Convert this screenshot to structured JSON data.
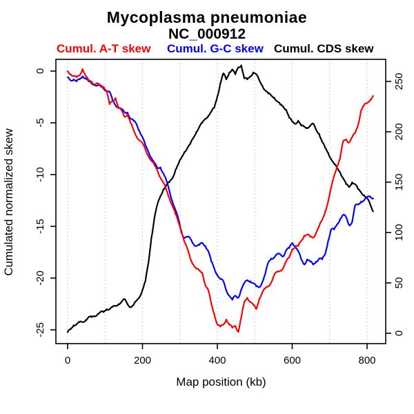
{
  "title": "Mycoplasma pneumoniae",
  "subtitle": "NC_000912",
  "legend": {
    "at": "Cumul. A-T skew",
    "gc": "Cumul. G-C skew",
    "cds": "Cumul. CDS skew"
  },
  "axes": {
    "xlabel": "Map position (kb)",
    "ylabel_left": "Cumulated normalized skew"
  },
  "colors": {
    "at_skew": "#ff0000",
    "gc_skew": "#0000ff",
    "cds_skew": "#000000",
    "grid": "#c8c8c8",
    "background": "#ffffff"
  },
  "chart_data": {
    "type": "line",
    "title": "Mycoplasma pneumoniae",
    "subtitle": "NC_000912",
    "xlabel": "Map position (kb)",
    "ylabel_left": "Cumulated normalized skew",
    "legend_position": "top",
    "grid": "vertical dotted gridlines every 100 kb",
    "x_ticks": [
      0,
      200,
      400,
      600,
      800
    ],
    "y_left_ticks": [
      0,
      -5,
      -10,
      -15,
      -20,
      -25
    ],
    "y_right_ticks": [
      0,
      50,
      100,
      150,
      200,
      250
    ],
    "xlim": [
      -33,
      850
    ],
    "ylim_left": [
      -26.3,
      1.1
    ],
    "ylim_right": [
      -10,
      272
    ],
    "x": [
      0,
      8,
      16,
      24,
      32,
      40,
      48,
      56,
      64,
      72,
      80,
      88,
      96,
      104,
      112,
      120,
      128,
      136,
      144,
      152,
      160,
      168,
      176,
      184,
      192,
      200,
      208,
      216,
      224,
      232,
      240,
      248,
      256,
      264,
      272,
      280,
      288,
      296,
      304,
      312,
      320,
      328,
      336,
      344,
      352,
      360,
      368,
      376,
      384,
      392,
      400,
      408,
      416,
      424,
      432,
      440,
      448,
      456,
      464,
      472,
      480,
      488,
      496,
      504,
      512,
      520,
      528,
      536,
      544,
      552,
      560,
      568,
      576,
      584,
      592,
      600,
      608,
      616,
      624,
      632,
      640,
      648,
      656,
      664,
      672,
      680,
      688,
      696,
      704,
      712,
      720,
      728,
      736,
      744,
      752,
      760,
      768,
      776,
      784,
      792,
      800,
      808,
      816
    ],
    "series": [
      {
        "name": "Cumul. A-T skew",
        "color": "#ff0000",
        "axis": "left",
        "values": [
          0,
          -0.3,
          -0.5,
          -0.6,
          -0.4,
          0.2,
          -0.5,
          -0.9,
          -1,
          -1.3,
          -1.2,
          -1.5,
          -1.5,
          -1.9,
          -3.2,
          -2.9,
          -2.6,
          -3.6,
          -3.8,
          -4.4,
          -4.2,
          -5,
          -5.7,
          -6.3,
          -6.7,
          -7,
          -7.6,
          -8.2,
          -8.7,
          -9.1,
          -9.6,
          -10.3,
          -10.8,
          -11.5,
          -12.3,
          -13,
          -13.8,
          -14.6,
          -15.4,
          -16.5,
          -17.2,
          -18.1,
          -18.7,
          -19.1,
          -19.3,
          -19.5,
          -20.7,
          -21.2,
          -22.5,
          -23.5,
          -24.5,
          -24.7,
          -24.5,
          -24,
          -24.5,
          -24.8,
          -24.6,
          -25.2,
          -23.8,
          -22.3,
          -21.9,
          -22.3,
          -22.6,
          -23,
          -22,
          -21.4,
          -21,
          -20.8,
          -20.4,
          -19.7,
          -19.4,
          -19.3,
          -19,
          -18.4,
          -18,
          -17.2,
          -17,
          -16.9,
          -16.4,
          -15.9,
          -15.8,
          -16,
          -16.1,
          -15.6,
          -15,
          -14.4,
          -13.6,
          -12.6,
          -11.3,
          -10.1,
          -9.2,
          -8.4,
          -6.8,
          -6.6,
          -6.9,
          -6.4,
          -6,
          -5.2,
          -3.8,
          -3.3,
          -3.1,
          -2.8,
          -2.4
        ]
      },
      {
        "name": "Cumul. G-C skew",
        "color": "#0000ff",
        "axis": "left",
        "values": [
          -0.6,
          -0.9,
          -0.8,
          -1,
          -0.8,
          -0.5,
          -0.7,
          -1,
          -1.2,
          -1.3,
          -1.4,
          -1.4,
          -1.7,
          -1.9,
          -2,
          -2.8,
          -3.3,
          -3.5,
          -3.7,
          -4,
          -4,
          -4.6,
          -4.8,
          -5.1,
          -5.8,
          -6.4,
          -7.2,
          -7.8,
          -8.4,
          -8.9,
          -9.4,
          -9.3,
          -9.9,
          -10.6,
          -11.6,
          -12.6,
          -13.4,
          -14.3,
          -15.6,
          -16.1,
          -16,
          -16.2,
          -16.7,
          -16.9,
          -16.8,
          -16.6,
          -16.9,
          -17.4,
          -18.4,
          -19.1,
          -19.7,
          -20.1,
          -20.3,
          -21.2,
          -21.7,
          -22.1,
          -21.7,
          -21.9,
          -21.1,
          -20.5,
          -20.2,
          -20.3,
          -20.5,
          -20.8,
          -20.9,
          -20.4,
          -19.6,
          -18.5,
          -18.1,
          -18,
          -17.7,
          -17.7,
          -17.9,
          -17.3,
          -17.1,
          -16.6,
          -16.9,
          -17.4,
          -18.2,
          -18.7,
          -18.2,
          -18.4,
          -18.7,
          -18.4,
          -18.1,
          -18.2,
          -17.7,
          -16.4,
          -15.3,
          -15.3,
          -14.8,
          -14.3,
          -13.9,
          -14.1,
          -14.9,
          -14.6,
          -13,
          -12.9,
          -12.6,
          -12.5,
          -12.2,
          -12.1,
          -12.3
        ]
      },
      {
        "name": "Cumul. CDS skew",
        "color": "#000000",
        "axis": "right",
        "values": [
          1,
          4,
          8,
          9,
          11,
          11,
          13,
          16,
          16,
          17,
          19,
          21,
          21,
          24,
          24,
          26,
          27,
          29,
          31,
          34,
          29,
          26,
          28,
          32,
          36,
          43,
          52,
          70,
          95,
          115,
          128,
          136,
          143,
          147,
          150,
          154,
          162,
          168,
          174,
          180,
          184,
          188,
          194,
          200,
          205,
          209,
          213,
          216,
          220,
          224,
          235,
          248,
          258,
          252,
          259,
          262,
          257,
          264,
          266,
          253,
          252,
          255,
          259,
          257,
          251,
          246,
          241,
          238,
          236,
          234,
          230,
          227,
          225,
          222,
          214,
          210,
          208,
          211,
          206,
          205,
          204,
          206,
          208,
          202,
          198,
          190,
          184,
          179,
          173,
          168,
          164,
          160,
          154,
          148,
          145,
          150,
          148,
          143,
          140,
          137,
          134,
          128,
          121
        ]
      }
    ]
  }
}
